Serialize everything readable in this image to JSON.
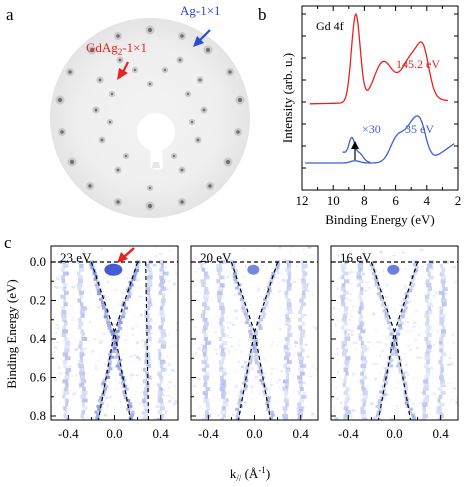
{
  "panel_a": {
    "letter": "a",
    "label_gdag2_prefix": "GdAg",
    "label_gdag2_sub": "2",
    "label_gdag2_suffix": "-1×1",
    "label_ag": "Ag-1×1",
    "colors": {
      "gdag2": "#e8231f",
      "ag": "#2b48d8"
    }
  },
  "panel_b": {
    "letter": "b",
    "peak_label": "Gd 4f",
    "ylabel": "Intensity (arb. u.)",
    "xlabel": "Binding Energy (eV)",
    "x_ticks": [
      "12",
      "10",
      "8",
      "6",
      "4",
      "2"
    ],
    "red_label": "145.2  eV",
    "blue_label": "35 eV",
    "blue_mag": "×30",
    "colors": {
      "red": "#e8231f",
      "blue": "#3a5fd9"
    }
  },
  "panel_c": {
    "letter": "c",
    "ylabel": "Binding Energy (eV)",
    "xlabel_prefix": "k",
    "xlabel_sub": "//",
    "xlabel_suffix": " (Å",
    "xlabel_sup": "-1",
    "xlabel_end": ")",
    "y_ticks": [
      "0.0",
      "0.2",
      "0.4",
      "0.6",
      "0.8"
    ],
    "x_ticks": [
      "-0.4",
      "0.0",
      "0.4"
    ],
    "subpanels": [
      {
        "energy": "23 eV"
      },
      {
        "energy": "20 eV"
      },
      {
        "energy": "16 eV"
      }
    ],
    "arrow_color": "#e8231f",
    "map_color": "#3a55d0"
  }
}
